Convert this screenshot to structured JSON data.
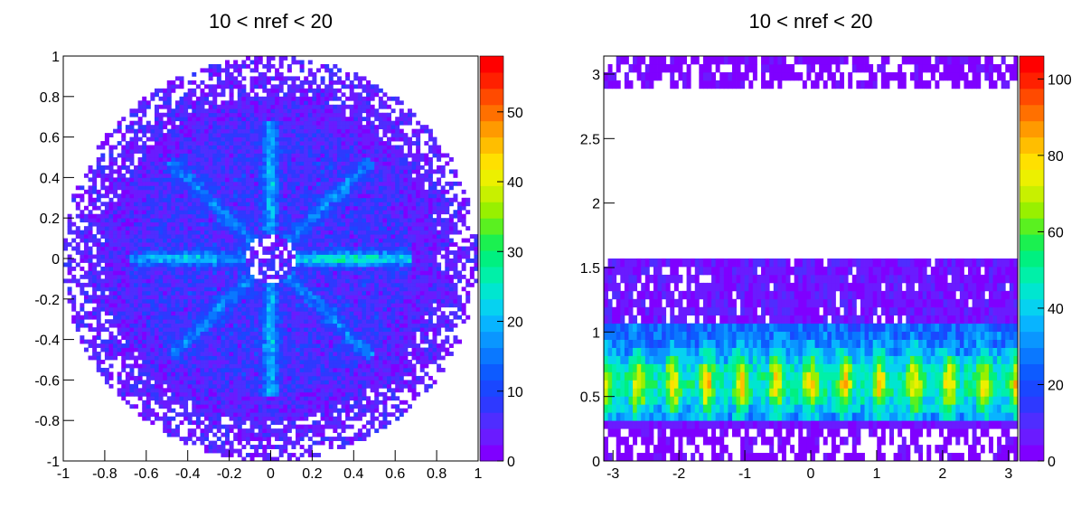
{
  "chart_data": [
    {
      "type": "heatmap",
      "title": "10 < nref < 20",
      "xlabel": "",
      "ylabel": "",
      "xlim": [
        -1,
        1
      ],
      "ylim": [
        -1,
        1
      ],
      "x_ticks": [
        -1,
        -0.8,
        -0.6,
        -0.4,
        -0.2,
        0,
        0.2,
        0.4,
        0.6,
        0.8,
        1
      ],
      "x_tick_labels": [
        "-1",
        "-0.8",
        "-0.6",
        "-0.4",
        "-0.2",
        "0",
        "0.2",
        "0.4",
        "0.6",
        "0.8",
        "1"
      ],
      "y_ticks": [
        -1,
        -0.8,
        -0.6,
        -0.4,
        -0.2,
        0,
        0.2,
        0.4,
        0.6,
        0.8,
        1
      ],
      "y_tick_labels": [
        "-1",
        "-0.8",
        "-0.6",
        "-0.4",
        "-0.2",
        "0",
        "0.2",
        "0.4",
        "0.6",
        "0.8",
        "1"
      ],
      "zlim": [
        0,
        58
      ],
      "z_ticks": [
        0,
        10,
        20,
        30,
        40,
        50
      ],
      "z_tick_labels": [
        "0",
        "10",
        "20",
        "30",
        "40",
        "50"
      ],
      "colormap": "rainbow (violet-blue-cyan-green-yellow-orange-red)",
      "grid": false,
      "description_of_distribution": {
        "shape": "filled disk of radius 1 with ragged, sparsely filled edge",
        "background_counts": "1-8",
        "features": [
          {
            "name": "arm",
            "x": [
              0.1,
              0.6
            ],
            "y": [
              0,
              0.05
            ],
            "peak": 30
          },
          {
            "name": "arm",
            "x": [
              -0.6,
              -0.1
            ],
            "y": [
              0,
              0.03
            ],
            "peak": 20
          },
          {
            "name": "arm",
            "x": [
              0,
              0.02
            ],
            "y": [
              0.1,
              0.6
            ],
            "peak": 20
          },
          {
            "name": "arm",
            "x": [
              0,
              0.02
            ],
            "y": [
              -0.6,
              -0.1
            ],
            "peak": 20
          },
          {
            "name": "diagonal arm",
            "x": [
              0.1,
              0.5
            ],
            "y": [
              0.1,
              0.5
            ],
            "peak": 16
          },
          {
            "name": "diagonal arm",
            "x": [
              -0.5,
              -0.1
            ],
            "y": [
              0.1,
              0.5
            ],
            "peak": 16
          },
          {
            "name": "diagonal arm",
            "x": [
              -0.5,
              -0.1
            ],
            "y": [
              -0.5,
              -0.1
            ],
            "peak": 16
          },
          {
            "name": "diagonal arm",
            "x": [
              0.1,
              0.5
            ],
            "y": [
              -0.5,
              -0.1
            ],
            "peak": 16
          }
        ]
      }
    },
    {
      "type": "heatmap",
      "title": "10 < nref < 20",
      "xlabel": "",
      "ylabel": "",
      "xlim": [
        -3.14,
        3.14
      ],
      "ylim": [
        0,
        3.14
      ],
      "x_ticks": [
        -3,
        -2,
        -1,
        0,
        1,
        2,
        3
      ],
      "x_tick_labels": [
        "-3",
        "-2",
        "-1",
        "0",
        "1",
        "2",
        "3"
      ],
      "y_ticks": [
        0,
        0.5,
        1,
        1.5,
        2,
        2.5,
        3
      ],
      "y_tick_labels": [
        "0",
        "0.5",
        "1",
        "1.5",
        "2",
        "2.5",
        "3"
      ],
      "zlim": [
        0,
        106
      ],
      "z_ticks": [
        0,
        20,
        40,
        60,
        80,
        100
      ],
      "z_tick_labels": [
        "0",
        "20",
        "40",
        "60",
        "80",
        "100"
      ],
      "colormap": "rainbow (violet-blue-cyan-green-yellow-orange-red)",
      "grid": false,
      "description_of_distribution": {
        "bands": [
          {
            "y": [
              2.88,
              3.14
            ],
            "counts": "1-5",
            "fill": "sparse"
          },
          {
            "y": [
              1.05,
              1.57
            ],
            "counts": "1-10",
            "fill": "dense"
          },
          {
            "y": [
              0.3,
              1.05
            ],
            "counts": "15-80",
            "fill": "dense, periodic in x with period ~0.52"
          },
          {
            "y": [
              0.0,
              0.3
            ],
            "counts": "1-5",
            "fill": "sparse"
          }
        ],
        "stripe_centers_x": [
          -3.1,
          -2.6,
          -2.1,
          -1.55,
          -1.05,
          -0.5,
          0.0,
          0.5,
          1.05,
          1.55,
          2.1,
          2.6,
          3.1
        ],
        "max_count": 100
      }
    }
  ]
}
